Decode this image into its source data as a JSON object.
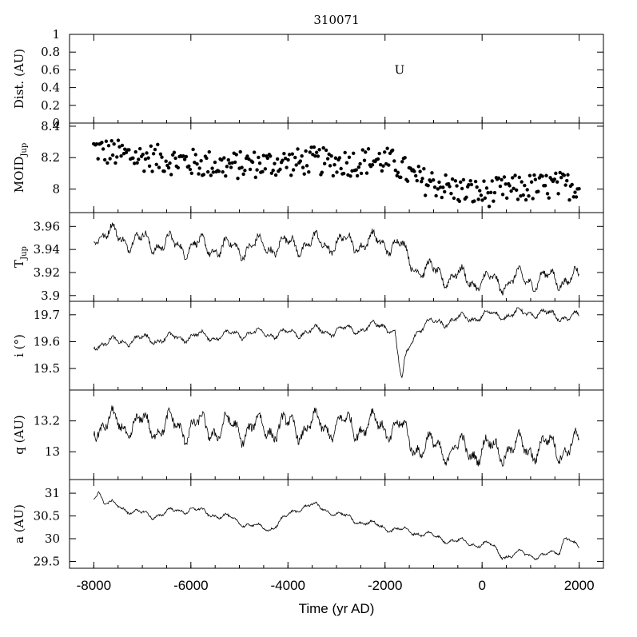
{
  "chart_data": {
    "type": "line",
    "title": "310071",
    "xlabel": "Time (yr AD)",
    "xlim": [
      -8500,
      2500
    ],
    "xticks": [
      -8000,
      -6000,
      -4000,
      -2000,
      0,
      2000
    ],
    "xtick_labels": [
      "-8000",
      "-6000",
      "-4000",
      "-2000",
      "0",
      "2000"
    ],
    "panels": [
      {
        "id": "dist",
        "ylabel": "Dist. (AU)",
        "ylabel_sub": "",
        "ylim": [
          0,
          1
        ],
        "yticks": [
          0,
          0.2,
          0.4,
          0.6,
          0.8,
          1
        ],
        "ytick_labels": [
          "0",
          "0.2",
          "0.4",
          "0.6",
          "0.8",
          "1"
        ],
        "annotation": "U",
        "annotation_x": -1700,
        "annotation_y": 0.6,
        "series": []
      },
      {
        "id": "moid",
        "ylabel": "MOID",
        "ylabel_sub": "Jup",
        "ylim": [
          7.85,
          8.42
        ],
        "yticks": [
          8,
          8.2,
          8.4
        ],
        "ytick_labels": [
          "8",
          "8.2",
          "8.4"
        ],
        "style": "scatter",
        "series": [
          {
            "kind": "scatter",
            "x": [
              -8000,
              -7800,
              -7600,
              -7400,
              -7200,
              -7000,
              -6800,
              -6600,
              -6400,
              -6200,
              -6000,
              -5800,
              -5600,
              -5400,
              -5200,
              -5000,
              -4800,
              -4600,
              -4400,
              -4200,
              -4000,
              -3800,
              -3600,
              -3400,
              -3200,
              -3000,
              -2800,
              -2600,
              -2400,
              -2200,
              -2000,
              -1800,
              -1600,
              -1400,
              -1200,
              -1000,
              -800,
              -600,
              -400,
              -200,
              0,
              200,
              400,
              600,
              800,
              1000,
              1200,
              1400,
              1600,
              1800,
              2000
            ],
            "y": [
              8.26,
              8.24,
              8.23,
              8.22,
              8.21,
              8.2,
              8.2,
              8.19,
              8.18,
              8.18,
              8.17,
              8.16,
              8.16,
              8.15,
              8.15,
              8.15,
              8.16,
              8.16,
              8.16,
              8.17,
              8.17,
              8.17,
              8.18,
              8.18,
              8.17,
              8.17,
              8.17,
              8.17,
              8.18,
              8.18,
              8.18,
              8.16,
              8.12,
              8.07,
              8.05,
              8.04,
              8.02,
              8.0,
              7.99,
              7.98,
              7.97,
              7.98,
              7.99,
              8.0,
              8.0,
              8.01,
              8.01,
              8.02,
              8.02,
              8.02,
              8.02
            ],
            "spread": 0.09
          }
        ]
      },
      {
        "id": "tjup",
        "ylabel": "T",
        "ylabel_sub": "Jup",
        "ylim": [
          3.895,
          3.972
        ],
        "yticks": [
          3.9,
          3.92,
          3.94,
          3.96
        ],
        "ytick_labels": [
          "3.9",
          "3.92",
          "3.94",
          "3.96"
        ],
        "series": [
          {
            "kind": "line",
            "x": [
              -8000,
              -7600,
              -7200,
              -6800,
              -6400,
              -6000,
              -5600,
              -5200,
              -4800,
              -4400,
              -4000,
              -3600,
              -3200,
              -2800,
              -2400,
              -2000,
              -1700,
              -1500,
              -1200,
              -800,
              -400,
              0,
              400,
              800,
              1200,
              1600,
              2000
            ],
            "y": [
              3.955,
              3.952,
              3.948,
              3.946,
              3.944,
              3.943,
              3.942,
              3.941,
              3.942,
              3.943,
              3.944,
              3.945,
              3.945,
              3.946,
              3.946,
              3.946,
              3.944,
              3.93,
              3.922,
              3.918,
              3.915,
              3.912,
              3.912,
              3.914,
              3.914,
              3.915,
              3.914
            ],
            "amplitude": 0.012
          }
        ]
      },
      {
        "id": "incl",
        "ylabel": "i (°)",
        "ylabel_sub": "",
        "ylim": [
          19.42,
          19.75
        ],
        "yticks": [
          19.5,
          19.6,
          19.7
        ],
        "ytick_labels": [
          "19.5",
          "19.6",
          "19.7"
        ],
        "series": [
          {
            "kind": "line",
            "x": [
              -8000,
              -7500,
              -7000,
              -6500,
              -6000,
              -5500,
              -5000,
              -4500,
              -4000,
              -3500,
              -3000,
              -2500,
              -2000,
              -1800,
              -1700,
              -1650,
              -1600,
              -1500,
              -1400,
              -1200,
              -1000,
              -600,
              -200,
              200,
              600,
              1000,
              1400,
              1800,
              2000
            ],
            "y": [
              19.59,
              19.6,
              19.61,
              19.61,
              19.62,
              19.62,
              19.63,
              19.63,
              19.63,
              19.64,
              19.64,
              19.65,
              19.66,
              19.64,
              19.5,
              19.45,
              19.52,
              19.58,
              19.63,
              19.66,
              19.67,
              19.68,
              19.69,
              19.7,
              19.7,
              19.71,
              19.7,
              19.69,
              19.69
            ],
            "amplitude": 0.025
          }
        ]
      },
      {
        "id": "q",
        "ylabel": "q (AU)",
        "ylabel_sub": "",
        "ylim": [
          12.82,
          13.4
        ],
        "yticks": [
          13,
          13.2
        ],
        "ytick_labels": [
          "13",
          "13.2"
        ],
        "series": [
          {
            "kind": "line",
            "x": [
              -8000,
              -7000,
              -6000,
              -5000,
              -4000,
              -3000,
              -2000,
              -1700,
              -1500,
              -1200,
              -800,
              -400,
              0,
              400,
              800,
              1200,
              1600,
              2000
            ],
            "y": [
              13.18,
              13.17,
              13.16,
              13.15,
              13.16,
              13.17,
              13.17,
              13.15,
              13.07,
              13.03,
              13.02,
              13.01,
              13.01,
              13.02,
              13.02,
              13.03,
              13.03,
              13.03
            ],
            "amplitude": 0.12
          }
        ]
      },
      {
        "id": "a",
        "ylabel": "a (AU)",
        "ylabel_sub": "",
        "ylim": [
          29.35,
          31.3
        ],
        "yticks": [
          29.5,
          30,
          30.5,
          31
        ],
        "ytick_labels": [
          "29.5",
          "30",
          "30.5",
          "31"
        ],
        "series": [
          {
            "kind": "line",
            "x": [
              -8000,
              -7900,
              -7800,
              -7600,
              -7200,
              -6800,
              -6400,
              -6000,
              -5600,
              -5200,
              -4800,
              -4400,
              -4200,
              -4000,
              -3800,
              -3600,
              -3400,
              -3000,
              -2600,
              -2200,
              -1800,
              -1400,
              -1000,
              -600,
              -200,
              200,
              400,
              600,
              800,
              1000,
              1200,
              1400,
              1600,
              1700,
              1800,
              1900,
              2000
            ],
            "y": [
              30.9,
              31.1,
              30.8,
              30.75,
              30.6,
              30.5,
              30.6,
              30.65,
              30.55,
              30.45,
              30.3,
              30.2,
              30.35,
              30.5,
              30.65,
              30.75,
              30.7,
              30.55,
              30.4,
              30.3,
              30.2,
              30.15,
              30.05,
              29.95,
              29.9,
              29.85,
              29.65,
              29.6,
              29.7,
              29.65,
              29.6,
              29.65,
              29.75,
              30.05,
              30.0,
              29.85,
              29.75
            ],
            "amplitude": 0.1
          }
        ]
      }
    ]
  }
}
